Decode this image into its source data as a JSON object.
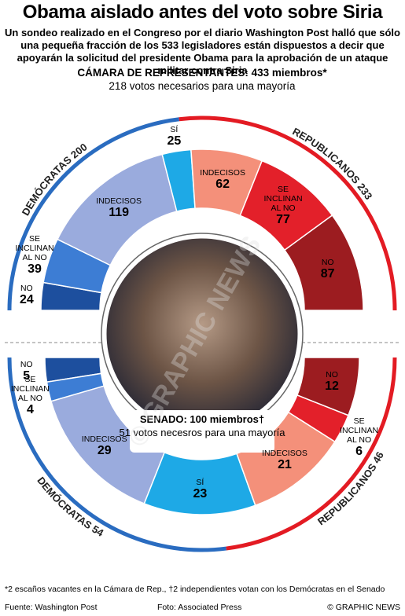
{
  "title": "Obama aislado antes del voto sobre Siria",
  "subtitle": "Un sondeo realizado en el Congreso por el diario Washington Post halló que sólo una pequeña fracción de los 533 legisladores están dispuestos a decir que apoyarán la solicitud del presidente Obama para la aprobación de un ataque militar contra Siria",
  "chart_data": [
    {
      "type": "donut",
      "half": "top",
      "title": "CÁMARA DE REPRESENTANTES: 433 miembros*",
      "subtitle": "218 votos necesarios para una mayoría",
      "categories": [
        "NO",
        "SE INCLINAN AL NO",
        "INDECISOS",
        "SÍ",
        "INDECISOS",
        "SE INCLINAN AL NO",
        "NO"
      ],
      "values": [
        24,
        39,
        119,
        25,
        62,
        77,
        87
      ],
      "colors": [
        "#1d4f9e",
        "#3d7dd4",
        "#9aabdd",
        "#1ea9e6",
        "#f4907a",
        "#e3202a",
        "#9c1c20"
      ],
      "parties": [
        {
          "name": "DEMÓCRATAS",
          "value": 200,
          "color": "#2a6cc0"
        },
        {
          "name": "REPUBLICANOS",
          "value": 233,
          "color": "#e31b23"
        }
      ]
    },
    {
      "type": "donut",
      "half": "bottom",
      "title": "SENADO: 100 miembros†",
      "subtitle": "51 votos necesros para una mayoría",
      "categories": [
        "NO",
        "SE INCLINAN AL NO",
        "INDECISOS",
        "SÍ",
        "INDECISOS",
        "SE INCLINAN AL NO",
        "NO"
      ],
      "values": [
        5,
        4,
        29,
        23,
        21,
        6,
        12
      ],
      "colors": [
        "#1d4f9e",
        "#3d7dd4",
        "#9aabdd",
        "#1ea9e6",
        "#f4907a",
        "#e3202a",
        "#9c1c20"
      ],
      "parties": [
        {
          "name": "DEMÓCRATAS",
          "value": 54,
          "color": "#2a6cc0"
        },
        {
          "name": "REPUBLICANOS",
          "value": 46,
          "color": "#e31b23"
        }
      ]
    }
  ],
  "footnote": "*2 escaños vacantes en la Cámara de Rep., †2 independientes votan con los Demócratas en el Senado",
  "source": "Fuente: Washington Post",
  "photo_credit": "Foto: Associated Press",
  "credit": "© GRAPHIC NEWS",
  "watermark": "© GRAPHIC NEWS"
}
